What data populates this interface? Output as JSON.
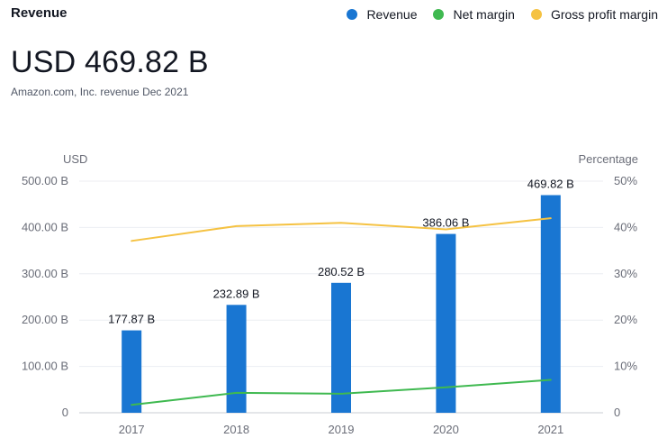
{
  "header": {
    "title": "Revenue",
    "value": "USD 469.82 B",
    "subtitle": "Amazon.com, Inc. revenue Dec 2021"
  },
  "legend": [
    {
      "label": "Revenue",
      "color": "#1976d2"
    },
    {
      "label": "Net margin",
      "color": "#3fb950"
    },
    {
      "label": "Gross profit margin",
      "color": "#f5c242"
    }
  ],
  "chart_data": {
    "type": "bar",
    "categories": [
      "2017",
      "2018",
      "2019",
      "2020",
      "2021"
    ],
    "series": [
      {
        "name": "Revenue",
        "type": "bar",
        "axis": "left",
        "color": "#1976d2",
        "values": [
          177.87,
          232.89,
          280.52,
          386.06,
          469.82
        ]
      },
      {
        "name": "Net margin",
        "type": "line",
        "axis": "right",
        "color": "#3fb950",
        "values": [
          1.7,
          4.3,
          4.1,
          5.5,
          7.1
        ]
      },
      {
        "name": "Gross profit margin",
        "type": "line",
        "axis": "right",
        "color": "#f5c242",
        "values": [
          37.1,
          40.3,
          41.0,
          39.6,
          42.0
        ]
      }
    ],
    "data_labels": [
      "177.87 B",
      "232.89 B",
      "280.52 B",
      "386.06 B",
      "469.82 B"
    ],
    "left_axis": {
      "unit": "USD",
      "min": 0,
      "max": 500,
      "ticks": [
        0,
        100,
        200,
        300,
        400,
        500
      ],
      "tick_labels": [
        "0",
        "100.00 B",
        "200.00 B",
        "300.00 B",
        "400.00 B",
        "500.00 B"
      ]
    },
    "right_axis": {
      "unit": "Percentage",
      "min": 0,
      "max": 50,
      "ticks": [
        0,
        10,
        20,
        30,
        40,
        50
      ],
      "tick_labels": [
        "0",
        "10%",
        "20%",
        "30%",
        "40%",
        "50%"
      ]
    },
    "grid": true,
    "legend_position": "top-right"
  }
}
